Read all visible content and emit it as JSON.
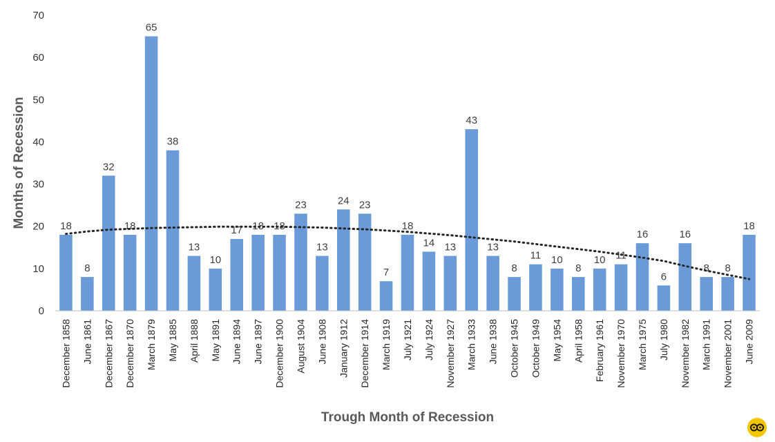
{
  "chart_data": {
    "type": "bar",
    "xlabel": "Trough Month of Recession",
    "ylabel": "Months of Recession",
    "ylim": [
      0,
      70
    ],
    "yticks": [
      0,
      10,
      20,
      30,
      40,
      50,
      60,
      70
    ],
    "grid": false,
    "bar_color": "#6a9bd8",
    "trendline": {
      "type": "polynomial",
      "style": "dotted",
      "color": "#262626"
    },
    "categories": [
      "December 1858",
      "June 1861",
      "December 1867",
      "December 1870",
      "March 1879",
      "May 1885",
      "April 1888",
      "May 1891",
      "June 1894",
      "June 1897",
      "December 1900",
      "August 1904",
      "June 1908",
      "January 1912",
      "December 1914",
      "March 1919",
      "July 1921",
      "July 1924",
      "November 1927",
      "March 1933",
      "June 1938",
      "October 1945",
      "October 1949",
      "May 1954",
      "April 1958",
      "February 1961",
      "November 1970",
      "March 1975",
      "July 1980",
      "November 1982",
      "March 1991",
      "November 2001",
      "June 2009"
    ],
    "values": [
      18,
      8,
      32,
      18,
      65,
      38,
      13,
      10,
      17,
      18,
      18,
      23,
      13,
      24,
      23,
      7,
      18,
      14,
      13,
      43,
      13,
      8,
      11,
      10,
      8,
      10,
      11,
      16,
      6,
      16,
      8,
      8,
      18
    ],
    "trend_values": [
      18.2,
      18.8,
      19.2,
      19.4,
      19.6,
      19.7,
      19.8,
      19.9,
      19.9,
      19.9,
      19.9,
      19.8,
      19.7,
      19.5,
      19.3,
      19.0,
      18.7,
      18.3,
      17.9,
      17.4,
      16.9,
      16.4,
      15.8,
      15.2,
      14.6,
      14.0,
      13.3,
      12.6,
      11.8,
      10.6,
      9.5,
      8.5,
      7.5
    ]
  },
  "logo": {
    "name": "brand-logo"
  }
}
